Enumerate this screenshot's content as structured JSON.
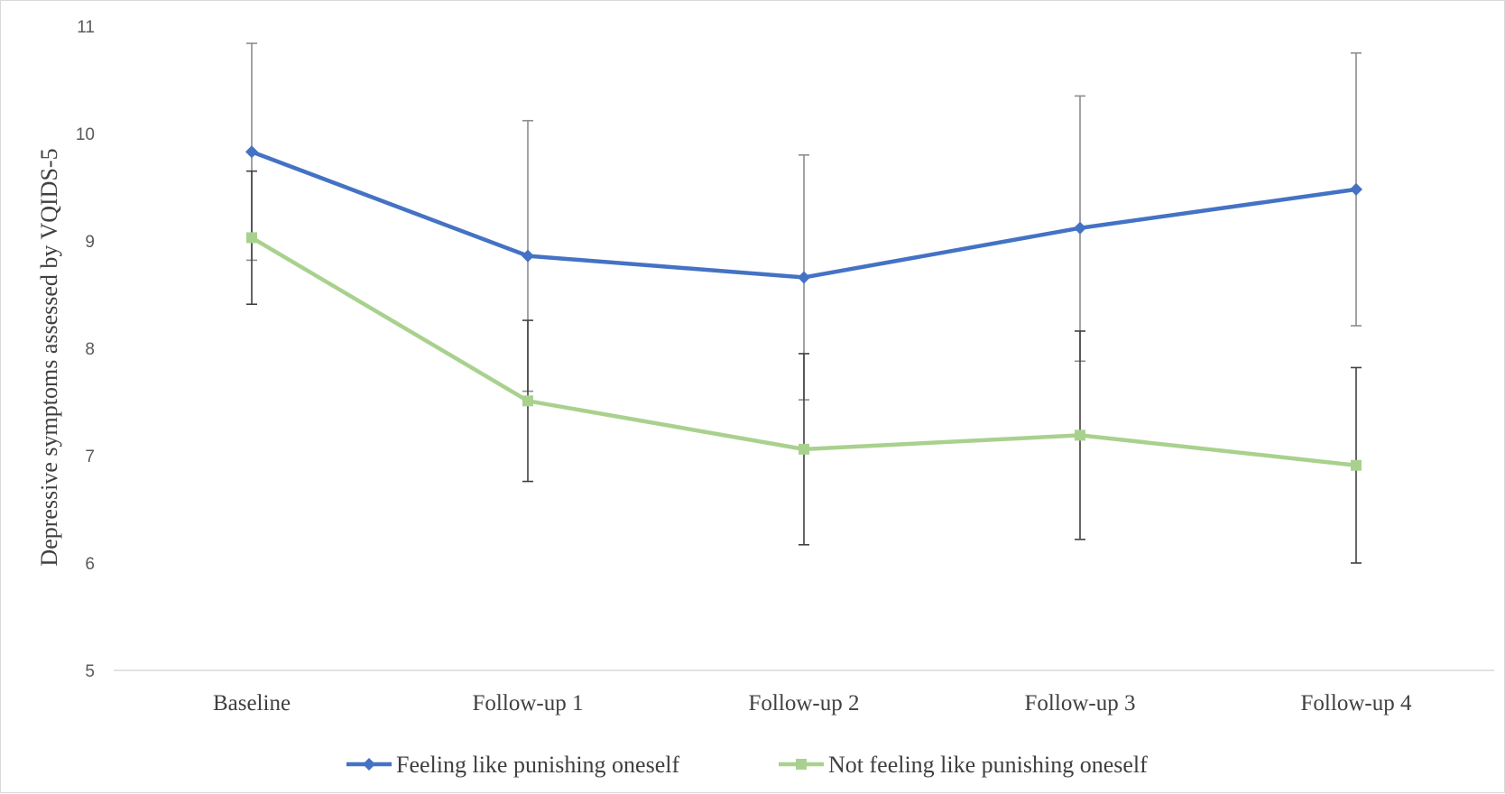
{
  "chart_data": {
    "type": "line",
    "title": "",
    "xlabel": "",
    "ylabel": "Depressive symptoms assessed by VQIDS-5",
    "ylim": [
      5,
      11
    ],
    "yticks": [
      5,
      6,
      7,
      8,
      9,
      10,
      11
    ],
    "categories": [
      "Baseline",
      "Follow-up 1",
      "Follow-up 2",
      "Follow-up 3",
      "Follow-up 4"
    ],
    "grid": false,
    "legend_position": "bottom",
    "series": [
      {
        "name": "Feeling like punishing oneself",
        "color": "#4472c4",
        "marker": "diamond",
        "values": [
          9.83,
          8.86,
          8.66,
          9.12,
          9.48
        ],
        "error_low": [
          8.82,
          7.6,
          7.52,
          7.88,
          8.21
        ],
        "error_high": [
          10.84,
          10.12,
          9.8,
          10.35,
          10.75
        ]
      },
      {
        "name": "Not feeling like punishing oneself",
        "color": "#a9d18e",
        "marker": "square",
        "values": [
          9.03,
          7.51,
          7.06,
          7.19,
          6.91
        ],
        "error_low": [
          8.41,
          6.76,
          6.17,
          6.22,
          6.0
        ],
        "error_high": [
          9.65,
          8.26,
          7.95,
          8.16,
          7.82
        ]
      }
    ]
  }
}
